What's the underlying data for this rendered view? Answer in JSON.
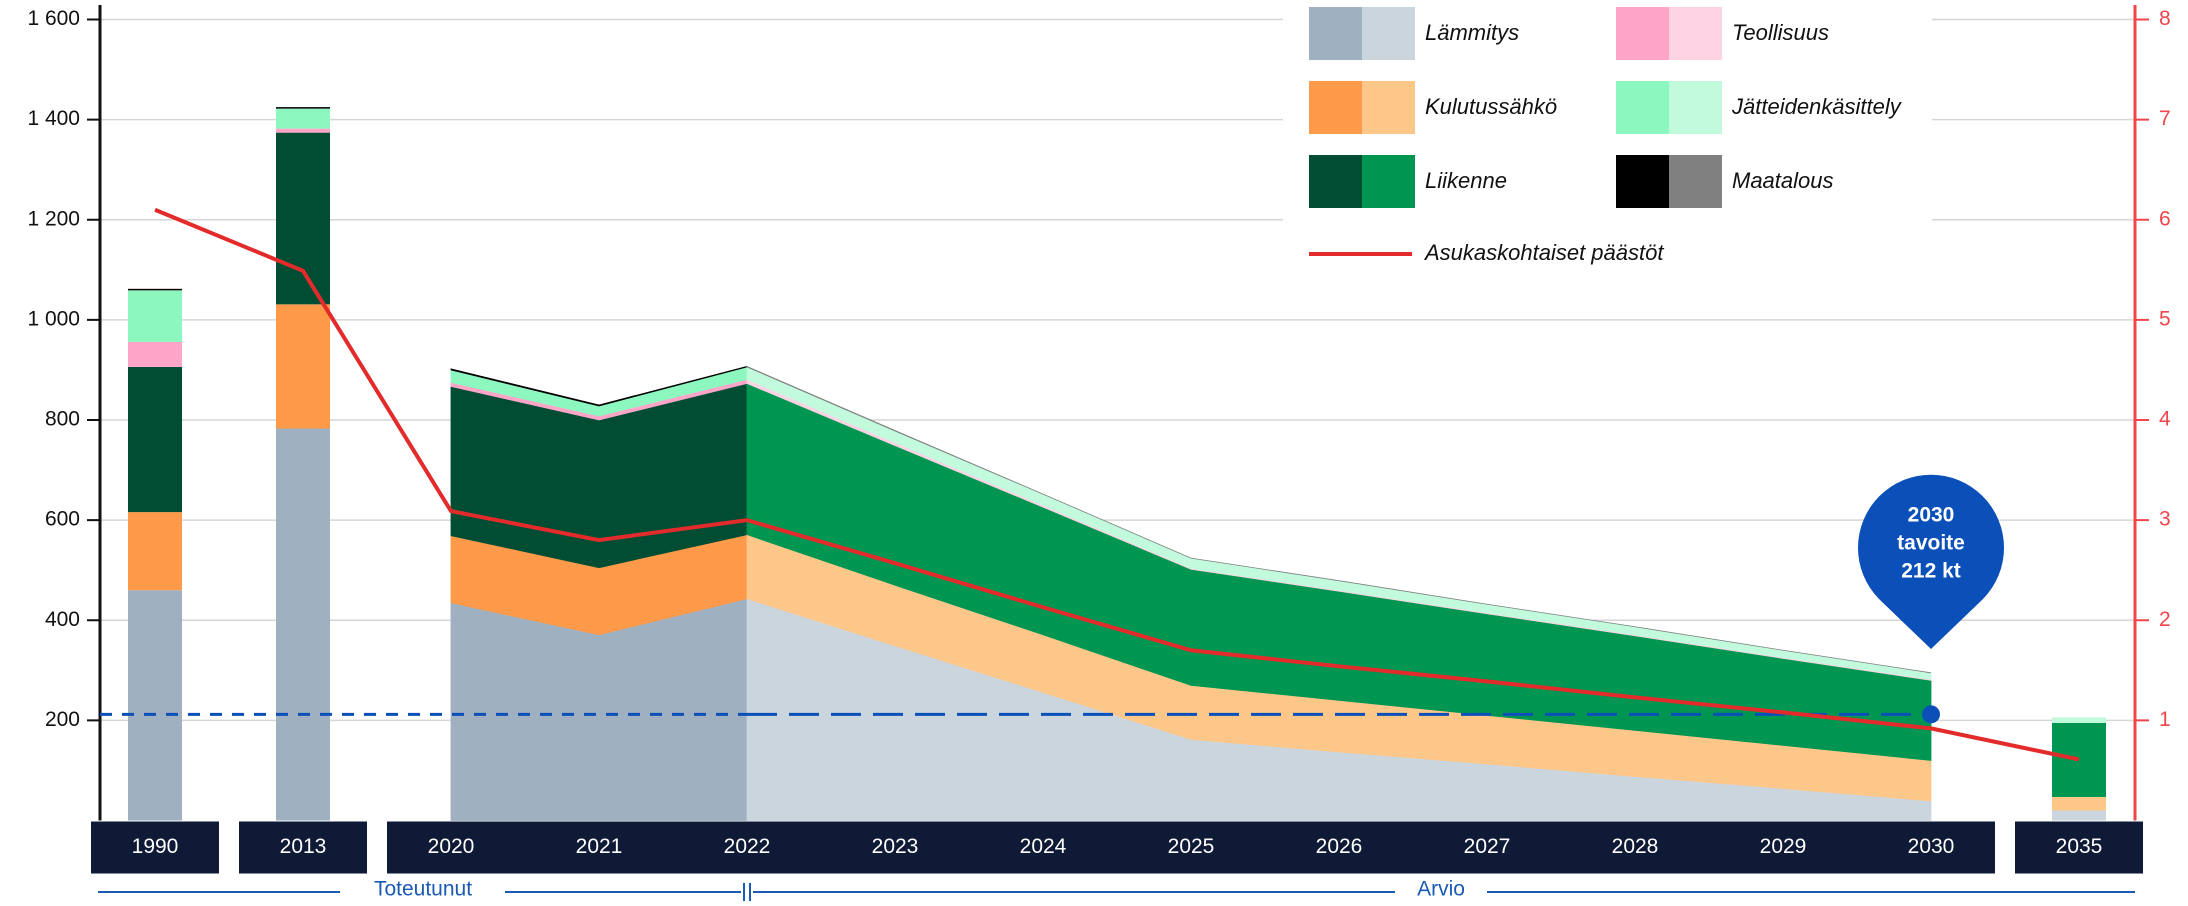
{
  "chart_data": {
    "type": "stacked_area_bar",
    "categories": [
      "1990",
      "2013",
      "2020",
      "2021",
      "2022",
      "2023",
      "2024",
      "2025",
      "2026",
      "2027",
      "2028",
      "2029",
      "2030",
      "2035"
    ],
    "series": [
      {
        "name": "Lämmitys",
        "colors": [
          "#9fb0c1",
          "#cbd5de"
        ],
        "values": [
          460,
          783,
          435,
          371,
          443,
          349,
          256,
          162,
          137,
          113,
          88,
          64,
          39,
          20
        ]
      },
      {
        "name": "Kulutussähkö",
        "colors": [
          "#fe9a4a",
          "#fec78a"
        ],
        "values": [
          156,
          248,
          134,
          134,
          128,
          121,
          115,
          108,
          103,
          97,
          92,
          86,
          81,
          27
        ]
      },
      {
        "name": "Liikenne",
        "colors": [
          "#004d34",
          "#009652"
        ],
        "values": [
          290,
          343,
          298,
          295,
          302,
          279,
          255,
          232,
          218,
          203,
          189,
          174,
          160,
          148
        ]
      },
      {
        "name": "Teollisuus",
        "colors": [
          "#fea5c8",
          "#fed3e3"
        ],
        "values": [
          50,
          8,
          8,
          8,
          8,
          6,
          4,
          2,
          2,
          2,
          2,
          2,
          2,
          0
        ]
      },
      {
        "name": "Jätteidenkäsittely",
        "colors": [
          "#8df7c0",
          "#c2fadd"
        ],
        "values": [
          103,
          40,
          25,
          20,
          25,
          23,
          22,
          20,
          19,
          17,
          16,
          14,
          13,
          11
        ]
      },
      {
        "name": "Maatalous",
        "colors": [
          "#000000",
          "#808080"
        ],
        "values": [
          3,
          3,
          2,
          2,
          1,
          1,
          0,
          0,
          0,
          0,
          0,
          0,
          0,
          0
        ]
      },
      {
        "name": "Asukaskohtaiset päästöt",
        "type": "line",
        "axis": "y2",
        "color": "#e32b2b",
        "values": [
          6.1,
          5.49,
          3.09,
          2.8,
          3.0,
          2.57,
          2.13,
          1.7,
          1.54,
          1.39,
          1.23,
          1.08,
          0.92,
          0.61
        ]
      }
    ],
    "ylim": [
      0,
      1600
    ],
    "yticks": [
      200,
      400,
      600,
      800,
      {
        "value": 1000,
        "label": "1 000"
      },
      {
        "value": 1200,
        "label": "1 200"
      },
      {
        "value": 1400,
        "label": "1 400"
      },
      {
        "value": 1600,
        "label": "1 600"
      }
    ],
    "y2lim": [
      0,
      8
    ],
    "y2ticks": [
      1,
      2,
      3,
      4,
      5,
      6,
      7,
      8
    ],
    "y2color": "#f0454b",
    "grid": true,
    "periods": [
      "Toteutunut",
      "Arvio"
    ],
    "period_split": "2022",
    "target": {
      "value": 212,
      "year": "2030",
      "color": "#0b4fb8",
      "label": [
        "2030",
        "tavoite",
        "212 kt"
      ]
    }
  }
}
